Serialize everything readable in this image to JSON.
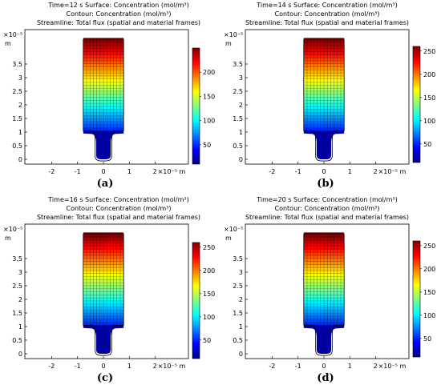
{
  "figure": {
    "panels": [
      {
        "id": "a",
        "caption": "(a)",
        "title_lines": [
          "Time=12 s   Surface: Concentration (mol/m³)",
          "Contour: Concentration (mol/m³)",
          "Streamline: Total flux (spatial and material frames)"
        ],
        "y_exponent": "×10⁻⁵",
        "y_unit": "m",
        "x_label": "×10⁻⁵ m",
        "y_ticks": [
          "0",
          "0.5",
          "1",
          "1.5",
          "2",
          "2.5",
          "3",
          "3.5"
        ],
        "x_ticks": [
          "-2",
          "-1",
          "0",
          "1",
          "2"
        ],
        "colorbar_ticks": [
          "50",
          "100",
          "150",
          "200"
        ],
        "colorbar_max": 250
      },
      {
        "id": "b",
        "caption": "(b)",
        "title_lines": [
          "Time=14 s   Surface: Concentration (mol/m³)",
          "Contour: Concentration (mol/m³)",
          "Streamline: Total flux (spatial and material frames)"
        ],
        "y_exponent": "×10⁻⁵",
        "y_unit": "m",
        "x_label": "×10⁻⁵ m",
        "y_ticks": [
          "0",
          "0.5",
          "1",
          "1.5",
          "2",
          "2.5",
          "3",
          "3.5"
        ],
        "x_ticks": [
          "-2",
          "-1",
          "0",
          "1",
          "2"
        ],
        "colorbar_ticks": [
          "50",
          "100",
          "150",
          "200",
          "250"
        ],
        "colorbar_max": 260
      },
      {
        "id": "c",
        "caption": "(c)",
        "title_lines": [
          "Time=16 s   Surface: Concentration (mol/m³)",
          "Contour: Concentration (mol/m³)",
          "Streamline: Total flux (spatial and material frames)"
        ],
        "y_exponent": "×10⁻⁵",
        "y_unit": "m",
        "x_label": "×10⁻⁵ m",
        "y_ticks": [
          "0",
          "0.5",
          "1",
          "1.5",
          "2",
          "2.5",
          "3",
          "3.5"
        ],
        "x_ticks": [
          "-2",
          "-1",
          "0",
          "1",
          "2"
        ],
        "colorbar_ticks": [
          "50",
          "100",
          "150",
          "200",
          "250"
        ],
        "colorbar_max": 260
      },
      {
        "id": "d",
        "caption": "(d)",
        "title_lines": [
          "Time=20 s   Surface: Concentration (mol/m³)",
          "Contour: Concentration (mol/m³)",
          "Streamline: Total flux (spatial and material frames)"
        ],
        "y_exponent": "×10⁻⁵",
        "y_unit": "m",
        "x_label": "×10⁻⁵ m",
        "y_ticks": [
          "0",
          "0.5",
          "1",
          "1.5",
          "2",
          "2.5",
          "3",
          "3.5"
        ],
        "x_ticks": [
          "-2",
          "-1",
          "0",
          "1",
          "2"
        ],
        "colorbar_ticks": [
          "50",
          "100",
          "150",
          "200",
          "250"
        ],
        "colorbar_max": 260
      }
    ],
    "colormap": [
      "#00007f",
      "#0000ff",
      "#0080ff",
      "#00ffff",
      "#80ff80",
      "#ffff00",
      "#ff8000",
      "#ff0000",
      "#7f0000"
    ]
  }
}
